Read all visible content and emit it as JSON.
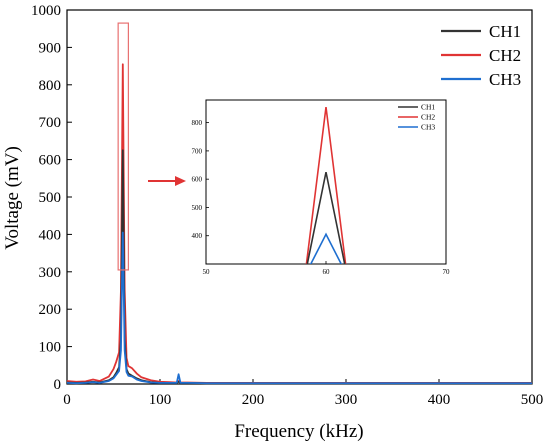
{
  "chart_data": {
    "type": "line",
    "xlabel": "Frequency (kHz)",
    "ylabel": "Voltage (mV)",
    "xlim": [
      0,
      500
    ],
    "ylim": [
      0,
      1000
    ],
    "xticks": [
      0,
      100,
      200,
      300,
      400,
      500
    ],
    "yticks": [
      0,
      100,
      200,
      300,
      400,
      500,
      600,
      700,
      800,
      900,
      1000
    ],
    "grid": false,
    "legend_position": "top-right",
    "series": [
      {
        "name": "CH1",
        "color": "#333333",
        "x": [
          0,
          10,
          20,
          28,
          35,
          45,
          50,
          53,
          56,
          58,
          59,
          60,
          61,
          62,
          64,
          66,
          70,
          75,
          80,
          90,
          100,
          110,
          118,
          120,
          122,
          130,
          150,
          200,
          250,
          300,
          350,
          400,
          450,
          500
        ],
        "y": [
          4,
          3,
          4,
          6,
          4,
          10,
          18,
          30,
          45,
          120,
          380,
          625,
          380,
          120,
          40,
          28,
          22,
          15,
          10,
          5,
          3,
          3,
          3,
          6,
          3,
          3,
          2,
          2,
          2,
          2,
          2,
          2,
          2,
          2
        ]
      },
      {
        "name": "CH2",
        "color": "#e03434",
        "x": [
          0,
          10,
          20,
          28,
          35,
          45,
          50,
          53,
          56,
          58,
          59,
          60,
          61,
          62,
          64,
          66,
          70,
          75,
          80,
          90,
          100,
          110,
          118,
          120,
          122,
          130,
          150,
          200,
          250,
          300,
          350,
          400,
          450,
          500
        ],
        "y": [
          8,
          6,
          7,
          12,
          8,
          20,
          40,
          60,
          85,
          250,
          550,
          855,
          550,
          250,
          70,
          48,
          42,
          28,
          18,
          10,
          6,
          5,
          4,
          8,
          4,
          4,
          3,
          3,
          3,
          3,
          3,
          3,
          3,
          3
        ]
      },
      {
        "name": "CH3",
        "color": "#1f6fd0",
        "x": [
          0,
          10,
          20,
          28,
          35,
          45,
          50,
          53,
          56,
          58,
          59,
          60,
          61,
          62,
          64,
          66,
          70,
          75,
          80,
          90,
          100,
          110,
          118,
          120,
          122,
          130,
          150,
          200,
          250,
          300,
          350,
          400,
          450,
          500
        ],
        "y": [
          3,
          2,
          3,
          5,
          3,
          8,
          15,
          25,
          35,
          90,
          250,
          405,
          250,
          90,
          32,
          22,
          20,
          12,
          8,
          4,
          3,
          3,
          3,
          26,
          3,
          3,
          2,
          2,
          2,
          2,
          2,
          2,
          2,
          2
        ]
      }
    ],
    "inset": {
      "xlim": [
        50,
        70
      ],
      "ylim": [
        300,
        880
      ],
      "xticks": [
        50,
        60,
        70
      ],
      "yticks": [
        400,
        500,
        600,
        700,
        800
      ],
      "legend_position": "top-left",
      "peak_x": 60,
      "base_half_width": 1.75,
      "peaks": [
        {
          "name": "CH1",
          "color": "#333333",
          "value": 625
        },
        {
          "name": "CH2",
          "color": "#e03434",
          "value": 855
        },
        {
          "name": "CH3",
          "color": "#1f6fd0",
          "value": 405
        }
      ]
    },
    "highlight_region": {
      "x": [
        55,
        66
      ],
      "y": [
        305,
        965
      ],
      "color": "#e87070"
    },
    "arrow_color": "#e03434"
  }
}
